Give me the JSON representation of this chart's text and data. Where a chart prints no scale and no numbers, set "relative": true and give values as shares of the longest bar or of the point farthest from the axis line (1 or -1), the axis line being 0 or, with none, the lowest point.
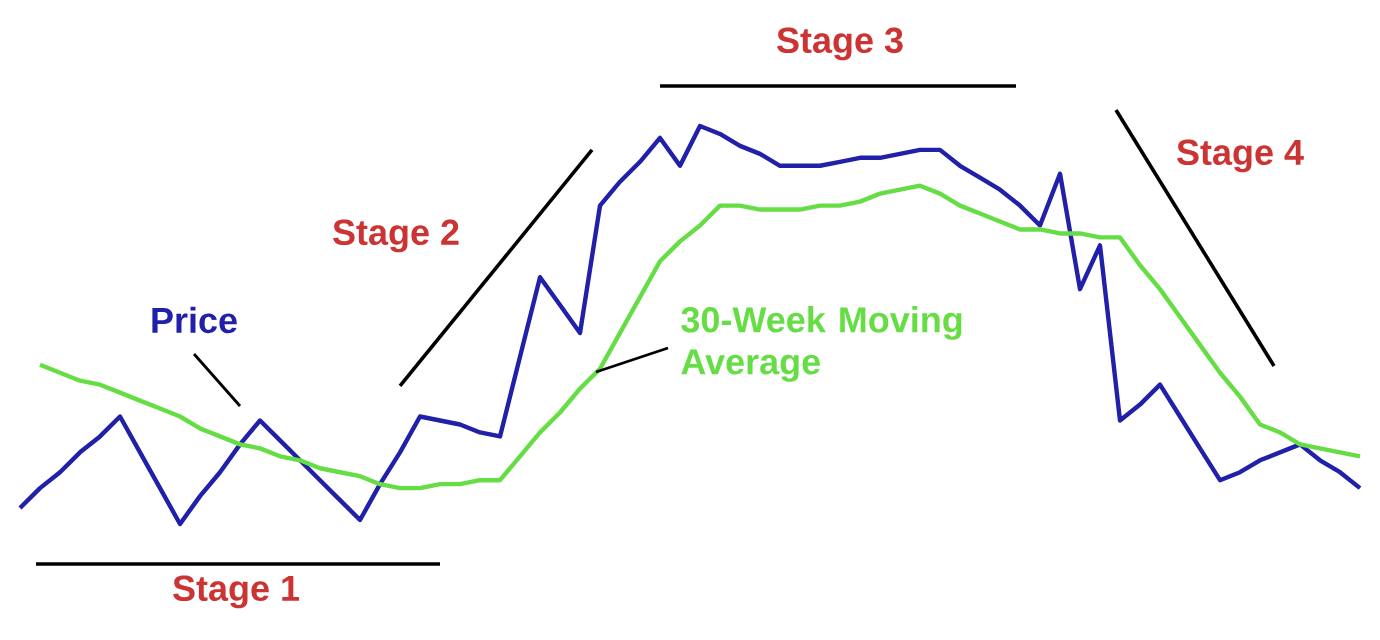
{
  "chart_data": {
    "type": "line",
    "relative": true,
    "legend": false,
    "marker": "none",
    "line_style": "solid",
    "categories": [
      null,
      null,
      null,
      null,
      null,
      null,
      null,
      null,
      null,
      null,
      null,
      null,
      null,
      null,
      null,
      null,
      null,
      null,
      null,
      null,
      null,
      null,
      null,
      null,
      null,
      null,
      null,
      null,
      null,
      null,
      null,
      null,
      null,
      null,
      null,
      null,
      null,
      null,
      null,
      null,
      null,
      null,
      null,
      null,
      null,
      null,
      null,
      null,
      null,
      null,
      null,
      null,
      null,
      null,
      null,
      null,
      null,
      null,
      null,
      null,
      null,
      null,
      null,
      null,
      null,
      null,
      null,
      null
    ],
    "series": [
      {
        "name": "Price",
        "color": "#2020a8",
        "values": [
          0.04,
          0.09,
          0.13,
          0.18,
          0.22,
          0.27,
          0.18,
          0.09,
          0,
          0.07,
          0.13,
          0.2,
          0.26,
          0.21,
          0.16,
          0.11,
          0.06,
          0.01,
          0.1,
          0.18,
          0.27,
          0.26,
          0.25,
          0.23,
          0.22,
          0.42,
          0.62,
          0.55,
          0.48,
          0.8,
          0.86,
          0.91,
          0.97,
          0.9,
          1,
          0.98,
          0.95,
          0.93,
          0.9,
          0.9,
          0.9,
          0.91,
          0.92,
          0.92,
          0.93,
          0.94,
          0.94,
          0.9,
          0.87,
          0.84,
          0.8,
          0.75,
          0.88,
          0.59,
          0.7,
          0.26,
          0.3,
          0.35,
          0.27,
          0.19,
          0.11,
          0.13,
          0.16,
          0.18,
          0.2,
          0.16,
          0.13,
          0.09
        ]
      },
      {
        "name": "30-Week Moving Average",
        "color": "#66dd44",
        "values": [
          null,
          0.4,
          0.38,
          0.36,
          0.35,
          0.33,
          0.31,
          0.29,
          0.27,
          0.24,
          0.22,
          0.2,
          0.19,
          0.17,
          0.16,
          0.14,
          0.13,
          0.12,
          0.1,
          0.09,
          0.09,
          0.1,
          0.1,
          0.11,
          0.11,
          0.17,
          0.23,
          0.28,
          0.34,
          0.39,
          0.48,
          0.57,
          0.66,
          0.71,
          0.75,
          0.8,
          0.8,
          0.79,
          0.79,
          0.79,
          0.8,
          0.8,
          0.81,
          0.83,
          0.84,
          0.85,
          0.83,
          0.8,
          0.78,
          0.76,
          0.74,
          0.74,
          0.73,
          0.73,
          0.72,
          0.72,
          0.65,
          0.59,
          0.52,
          0.45,
          0.38,
          0.32,
          0.25,
          0.23,
          0.2,
          0.19,
          0.18,
          0.17
        ]
      }
    ],
    "annotations": [
      "Stage 1",
      "Stage 2",
      "Stage 3",
      "Stage 4"
    ]
  }
}
